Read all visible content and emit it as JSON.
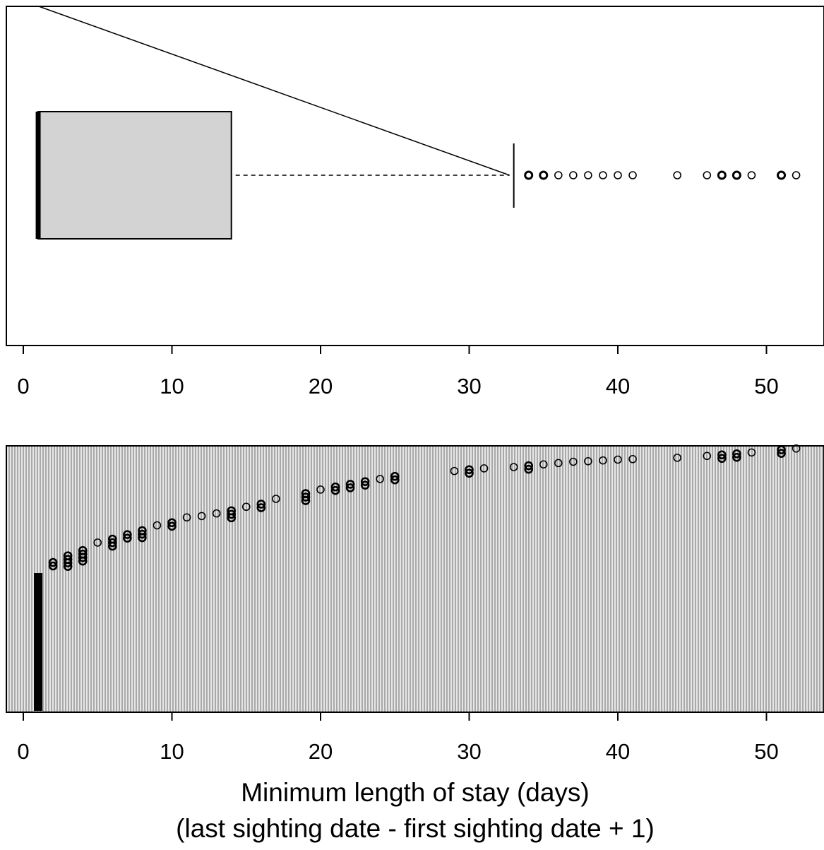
{
  "chart_data": [
    {
      "type": "boxplot",
      "orientation": "horizontal",
      "box": {
        "q1": 1,
        "median": 1,
        "q3": 14
      },
      "whisker": {
        "low": 1,
        "high": 33
      },
      "outliers": [
        34,
        35,
        36,
        37,
        38,
        39,
        40,
        41,
        44,
        46,
        47,
        48,
        49,
        51,
        52
      ],
      "xlim": [
        -1,
        54
      ],
      "xticks": [
        0,
        10,
        20,
        30,
        40,
        50
      ],
      "tick_labels": [
        "0",
        "10",
        "20",
        "30",
        "40",
        "50"
      ],
      "box_fill": "#d3d3d3",
      "grid": false
    },
    {
      "type": "scatter",
      "description_of_layout": "sorted values plotted with jitter, dense vertical gray background lines",
      "x": [
        1,
        2,
        3,
        4,
        5,
        6,
        7,
        8,
        9,
        10,
        11,
        12,
        13,
        14,
        15,
        16,
        17,
        19,
        20,
        21,
        22,
        23,
        24,
        25,
        29,
        30,
        31,
        33,
        34,
        35,
        36,
        37,
        38,
        39,
        40,
        41,
        44,
        46,
        47,
        48,
        49,
        51,
        52
      ],
      "xlim": [
        -1,
        54
      ],
      "xticks": [
        0,
        10,
        20,
        30,
        40,
        50
      ],
      "tick_labels": [
        "0",
        "10",
        "20",
        "30",
        "40",
        "50"
      ],
      "xlabel": "Minimum length of stay (days)",
      "xlabel2": "(last sighting date - first sighting date + 1)",
      "background_color": "#c8c8c8",
      "grid": false
    }
  ]
}
